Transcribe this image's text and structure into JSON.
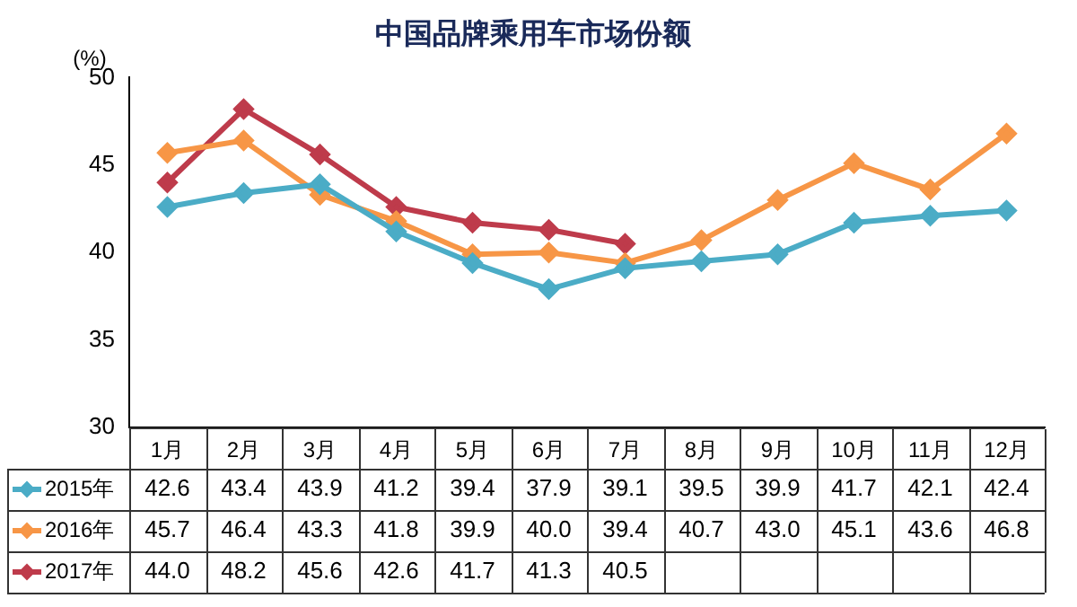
{
  "chart_data": {
    "type": "line",
    "title": "中国品牌乘用车市场份额",
    "ylabel": "(%)",
    "categories": [
      "1月",
      "2月",
      "3月",
      "4月",
      "5月",
      "6月",
      "7月",
      "8月",
      "9月",
      "10月",
      "11月",
      "12月"
    ],
    "series": [
      {
        "name": "2015年",
        "color": "#4bacc6",
        "values": [
          42.6,
          43.4,
          43.9,
          41.2,
          39.4,
          37.9,
          39.1,
          39.5,
          39.9,
          41.7,
          42.1,
          42.4
        ],
        "value_labels": [
          "42.6",
          "43.4",
          "43.9",
          "41.2",
          "39.4",
          "37.9",
          "39.1",
          "39.5",
          "39.9",
          "41.7",
          "42.1",
          "42.4"
        ]
      },
      {
        "name": "2016年",
        "color": "#f79646",
        "values": [
          45.7,
          46.4,
          43.3,
          41.8,
          39.9,
          40.0,
          39.4,
          40.7,
          43.0,
          45.1,
          43.6,
          46.8
        ],
        "value_labels": [
          "45.7",
          "46.4",
          "43.3",
          "41.8",
          "39.9",
          "40.0",
          "39.4",
          "40.7",
          "43.0",
          "45.1",
          "43.6",
          "46.8"
        ]
      },
      {
        "name": "2017年",
        "color": "#be3b4b",
        "values": [
          44.0,
          48.2,
          45.6,
          42.6,
          41.7,
          41.3,
          40.5,
          null,
          null,
          null,
          null,
          null
        ],
        "value_labels": [
          "44.0",
          "48.2",
          "45.6",
          "42.6",
          "41.7",
          "41.3",
          "40.5",
          null,
          null,
          null,
          null,
          null
        ]
      }
    ],
    "ylim": [
      30,
      50
    ],
    "yticks": [
      30,
      35,
      40,
      45,
      50
    ],
    "grid": false,
    "legend": "bottom left",
    "marker": "diamond"
  }
}
